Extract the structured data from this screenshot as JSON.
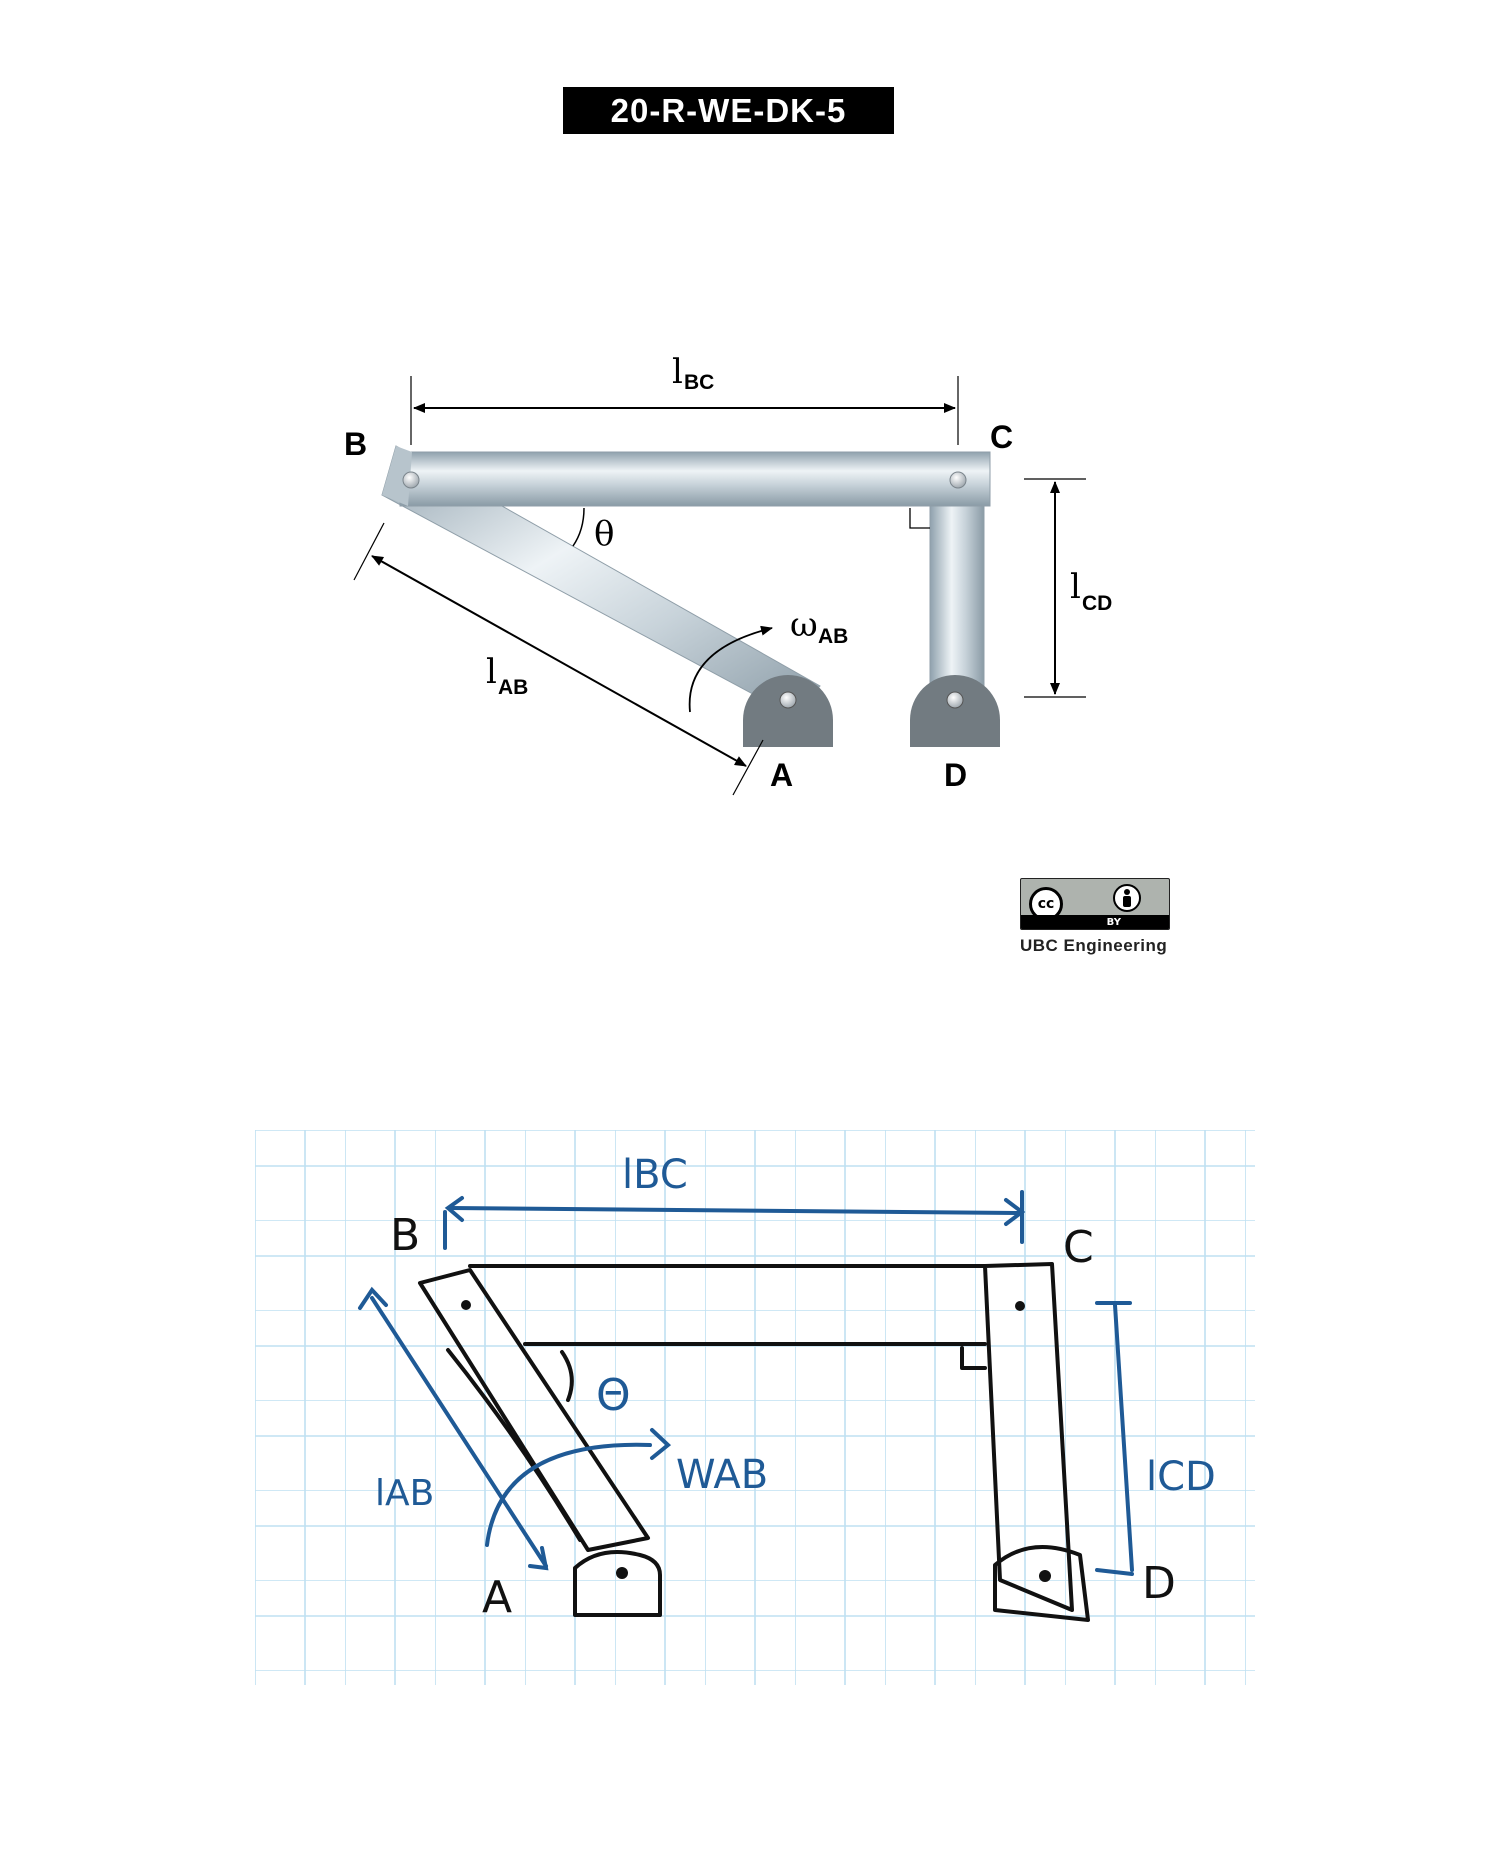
{
  "header": {
    "problem_code": "20-R-WE-DK-5"
  },
  "diagram": {
    "points": {
      "a": "A",
      "b": "B",
      "c": "C",
      "d": "D"
    },
    "theta": "θ",
    "lengths": {
      "bc": {
        "symbol": "l",
        "sub": "BC"
      },
      "cd": {
        "symbol": "l",
        "sub": "CD"
      },
      "ab": {
        "symbol": "l",
        "sub": "AB"
      }
    },
    "omega": {
      "symbol": "ω",
      "sub": "AB"
    }
  },
  "license": {
    "badge_cc": "cc",
    "badge_by": "BY",
    "caption": "UBC Engineering",
    "icons": [
      "cc-icon",
      "by-person-icon"
    ]
  },
  "sketch": {
    "points": {
      "a": "A",
      "b": "B",
      "c": "C",
      "d": "D"
    },
    "theta": "Θ",
    "lengths": {
      "bc": "lBC",
      "cd": "lCD",
      "ab": "lAB"
    },
    "omega": "WAB"
  }
}
